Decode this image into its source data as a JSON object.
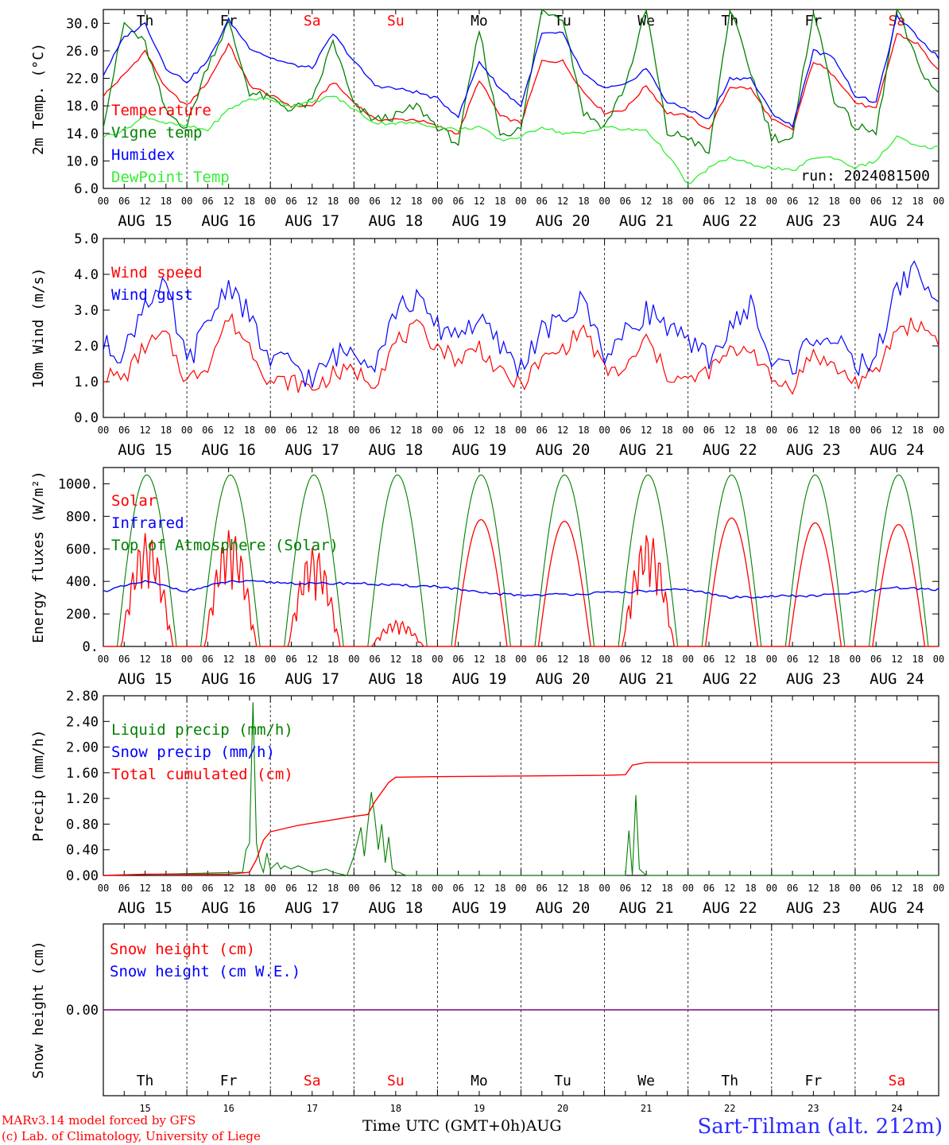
{
  "footer": {
    "credit_model": "MARv3.14 model forced by GFS",
    "credit_lab": "(c) Lab. of Climatology, University of Liege",
    "time_axis": "Time UTC (GMT+0h)AUG",
    "station": "Sart-Tilman (alt. 212m)"
  },
  "colors": {
    "red": "#ff0000",
    "blue": "#0000ff",
    "green": "#008000",
    "light_green": "#33ee33",
    "purple": "#800080",
    "weekend": "#ff0000",
    "weekday": "#000000"
  },
  "chart_data": [
    {
      "type": "line",
      "panel": "temperature",
      "ylabel": "2m Temp. (°C)",
      "ylim": [
        6,
        32
      ],
      "yticks": [
        "6.0",
        "10.0",
        "14.0",
        "18.0",
        "22.0",
        "26.0",
        "30.0"
      ],
      "annotation": "run: 2024081500",
      "day_labels": [
        "Th",
        "Fr",
        "Sa",
        "Su",
        "Mo",
        "Tu",
        "We",
        "Th",
        "Fr",
        "Sa"
      ],
      "hour_ticks": [
        "00",
        "06",
        "12",
        "18"
      ],
      "date_labels": [
        "AUG 15",
        "AUG 16",
        "AUG 17",
        "AUG 18",
        "AUG 19",
        "AUG 20",
        "AUG 21",
        "AUG 22",
        "AUG 23",
        "AUG 24"
      ],
      "x_hours": [
        0,
        6,
        12,
        18,
        24,
        30,
        36,
        42,
        48,
        54,
        60,
        66,
        72,
        78,
        84,
        90,
        96,
        102,
        108,
        114,
        120,
        126,
        132,
        138,
        144,
        150,
        156,
        162,
        168,
        174,
        180,
        186,
        192,
        198,
        204,
        210,
        216,
        222,
        228,
        234,
        240
      ],
      "series": [
        {
          "name": "Temperature",
          "color": "red",
          "values": [
            19.5,
            22.5,
            26.0,
            20.5,
            18.0,
            21.5,
            27.0,
            21.0,
            19.5,
            18.0,
            18.0,
            21.5,
            18.5,
            16.0,
            16.0,
            16.0,
            15.0,
            14.0,
            21.8,
            16.5,
            15.5,
            24.5,
            24.5,
            20.0,
            17.0,
            17.5,
            21.0,
            17.0,
            16.5,
            14.5,
            20.8,
            20.5,
            16.0,
            14.5,
            24.5,
            22.5,
            18.5,
            17.5,
            28.5,
            27.0,
            23.0
          ]
        },
        {
          "name": "Vigne temp",
          "color": "green",
          "values": [
            15.5,
            30.0,
            27.0,
            17.0,
            15.0,
            24.0,
            30.0,
            20.0,
            19.0,
            17.5,
            18.5,
            27.5,
            18.0,
            16.0,
            16.5,
            18.0,
            15.0,
            12.5,
            29.0,
            14.0,
            14.5,
            32.0,
            31.0,
            17.0,
            15.0,
            21.0,
            32.0,
            14.0,
            13.5,
            11.0,
            32.0,
            23.0,
            13.5,
            13.0,
            32.0,
            19.0,
            15.0,
            14.0,
            32.0,
            24.0,
            19.5
          ]
        },
        {
          "name": "Humidex",
          "color": "blue",
          "values": [
            22.5,
            28.0,
            30.0,
            23.5,
            21.5,
            24.5,
            30.5,
            26.5,
            25.0,
            24.0,
            23.5,
            28.5,
            24.5,
            21.0,
            20.5,
            20.0,
            19.0,
            16.5,
            24.5,
            20.5,
            18.0,
            28.5,
            28.5,
            22.5,
            20.5,
            21.0,
            23.5,
            18.5,
            17.5,
            16.0,
            22.0,
            22.0,
            17.0,
            15.0,
            26.0,
            25.0,
            19.5,
            18.5,
            31.0,
            28.0,
            25.0
          ]
        },
        {
          "name": "DewPoint Temp",
          "color": "light_green",
          "values": [
            13.5,
            14.5,
            16.5,
            15.5,
            15.0,
            14.5,
            17.5,
            19.0,
            19.0,
            18.0,
            18.5,
            19.5,
            17.5,
            15.5,
            15.5,
            15.5,
            15.0,
            14.5,
            15.0,
            13.0,
            13.5,
            15.0,
            14.0,
            14.0,
            15.0,
            14.5,
            14.5,
            11.0,
            6.5,
            9.0,
            10.5,
            9.5,
            9.0,
            8.5,
            10.5,
            10.5,
            9.0,
            10.0,
            13.5,
            12.0,
            12.0
          ]
        }
      ]
    },
    {
      "type": "line",
      "panel": "wind",
      "ylabel": "10m Wind (m/s)",
      "ylim": [
        0,
        5
      ],
      "yticks": [
        "0.0",
        "1.0",
        "2.0",
        "3.0",
        "4.0",
        "5.0"
      ],
      "hour_ticks": [
        "00",
        "06",
        "12",
        "18"
      ],
      "date_labels": [
        "AUG 15",
        "AUG 16",
        "AUG 17",
        "AUG 18",
        "AUG 19",
        "AUG 20",
        "AUG 21",
        "AUG 22",
        "AUG 23",
        "AUG 24"
      ],
      "x_hours": [
        0,
        6,
        12,
        18,
        24,
        30,
        36,
        42,
        48,
        54,
        60,
        66,
        72,
        78,
        84,
        90,
        96,
        102,
        108,
        114,
        120,
        126,
        132,
        138,
        144,
        150,
        156,
        162,
        168,
        174,
        180,
        186,
        192,
        198,
        204,
        210,
        216,
        222,
        228,
        234,
        240
      ],
      "series": [
        {
          "name": "Wind speed",
          "color": "red",
          "values": [
            1.2,
            1.1,
            2.0,
            2.3,
            1.0,
            1.5,
            2.8,
            2.0,
            1.0,
            1.0,
            0.8,
            1.2,
            1.3,
            1.0,
            2.1,
            2.5,
            2.0,
            1.6,
            2.0,
            1.2,
            0.9,
            1.6,
            1.9,
            2.5,
            1.3,
            1.3,
            2.2,
            1.2,
            1.0,
            1.3,
            1.8,
            2.0,
            1.0,
            0.9,
            1.8,
            1.4,
            1.0,
            1.2,
            2.5,
            2.6,
            2.2
          ]
        },
        {
          "name": "Wind gust",
          "color": "blue",
          "values": [
            2.0,
            1.8,
            3.3,
            3.6,
            1.5,
            2.6,
            3.8,
            2.8,
            1.5,
            1.6,
            1.0,
            1.7,
            1.9,
            1.6,
            3.0,
            3.3,
            2.5,
            2.4,
            2.7,
            2.0,
            1.4,
            2.4,
            2.7,
            3.3,
            1.8,
            2.3,
            3.0,
            2.6,
            2.0,
            1.7,
            2.4,
            3.2,
            1.5,
            1.4,
            2.3,
            2.2,
            1.4,
            1.7,
            3.6,
            4.2,
            3.0
          ]
        }
      ]
    },
    {
      "type": "line",
      "panel": "energy",
      "ylabel": "Energy fluxes (W/m²)",
      "ylim": [
        0,
        1100
      ],
      "yticks": [
        "0.",
        "200.",
        "400.",
        "600.",
        "800.",
        "1000."
      ],
      "hour_ticks": [
        "00",
        "06",
        "12",
        "18"
      ],
      "date_labels": [
        "AUG 15",
        "AUG 16",
        "AUG 17",
        "AUG 18",
        "AUG 19",
        "AUG 20",
        "AUG 21",
        "AUG 22",
        "AUG 23",
        "AUG 24"
      ],
      "toa_peak": 1055,
      "toa_day_length_hours": [
        4,
        21
      ],
      "solar_day_peaks": [
        700,
        720,
        610,
        160,
        780,
        770,
        700,
        790,
        760,
        750
      ],
      "series": [
        {
          "name": "Solar",
          "color": "red"
        },
        {
          "name": "Infrared",
          "color": "blue",
          "x_hours": [
            0,
            12,
            24,
            36,
            48,
            60,
            72,
            84,
            96,
            108,
            120,
            132,
            144,
            156,
            168,
            180,
            192,
            204,
            216,
            228,
            240
          ],
          "values": [
            340,
            400,
            340,
            400,
            395,
            385,
            390,
            375,
            370,
            330,
            315,
            320,
            330,
            340,
            350,
            300,
            310,
            310,
            330,
            360,
            350
          ]
        },
        {
          "name": "Top of Atmosphere (Solar)",
          "color": "green"
        }
      ]
    },
    {
      "type": "line",
      "panel": "precip",
      "ylabel": "Precip (mm/h)",
      "ylim": [
        0,
        2.8
      ],
      "yticks": [
        "0.00",
        "0.40",
        "0.80",
        "1.20",
        "1.60",
        "2.00",
        "2.40",
        "2.80"
      ],
      "hour_ticks": [
        "00",
        "06",
        "12",
        "18"
      ],
      "date_labels": [
        "AUG 15",
        "AUG 16",
        "AUG 17",
        "AUG 18",
        "AUG 19",
        "AUG 20",
        "AUG 21",
        "AUG 22",
        "AUG 23",
        "AUG 24"
      ],
      "series": [
        {
          "name": "Liquid precip (mm/h)",
          "color": "green",
          "x_hours": [
            0,
            40,
            41,
            42,
            43,
            44,
            45,
            46,
            47,
            48,
            49,
            50,
            51,
            52,
            54,
            56,
            60,
            64,
            66,
            70,
            72,
            74,
            75,
            77,
            78,
            79,
            80,
            81,
            82,
            83,
            84,
            85,
            86,
            87,
            88,
            90,
            120,
            150,
            151,
            152,
            153,
            154,
            155,
            156,
            240
          ],
          "values": [
            0,
            0.05,
            0.4,
            0.5,
            2.7,
            0.5,
            0.2,
            0.05,
            0.35,
            0.1,
            0.15,
            0.2,
            0.1,
            0.15,
            0.1,
            0.15,
            0.05,
            0.1,
            0.05,
            0.0,
            0.3,
            0.75,
            0.3,
            1.3,
            0.9,
            0.4,
            0.8,
            0.2,
            0.6,
            0.1,
            0.05,
            0.05,
            0.02,
            0.0,
            0.0,
            0.0,
            0.0,
            0.0,
            0.7,
            0.0,
            1.25,
            0.1,
            0.05,
            0.0,
            0.0
          ]
        },
        {
          "name": "Snow precip (mm/h)",
          "color": "blue"
        },
        {
          "name": "Total cumulated (cm)",
          "color": "red",
          "x_hours": [
            0,
            12,
            36,
            42,
            44,
            46,
            48,
            56,
            64,
            72,
            76,
            78,
            82,
            84,
            96,
            120,
            144,
            150,
            152,
            156,
            240
          ],
          "values": [
            0.0,
            0.02,
            0.02,
            0.05,
            0.25,
            0.55,
            0.68,
            0.78,
            0.85,
            0.92,
            0.95,
            1.15,
            1.45,
            1.53,
            1.54,
            1.55,
            1.56,
            1.57,
            1.72,
            1.76,
            1.76
          ]
        }
      ]
    },
    {
      "type": "line",
      "panel": "snow",
      "ylabel": "Snow height (cm)",
      "yticks": [
        "0.00"
      ],
      "series": [
        {
          "name": "Snow height (cm)",
          "color": "red",
          "values": [
            0.0,
            0.0
          ]
        },
        {
          "name": "Snow height (cm W.E.)",
          "color": "blue",
          "values": [
            0.0,
            0.0
          ]
        }
      ],
      "day_labels": [
        "Th",
        "Fr",
        "Sa",
        "Su",
        "Mo",
        "Tu",
        "We",
        "Th",
        "Fr",
        "Sa"
      ],
      "day_numbers": [
        "15",
        "16",
        "17",
        "18",
        "19",
        "20",
        "21",
        "22",
        "23",
        "24"
      ]
    }
  ]
}
